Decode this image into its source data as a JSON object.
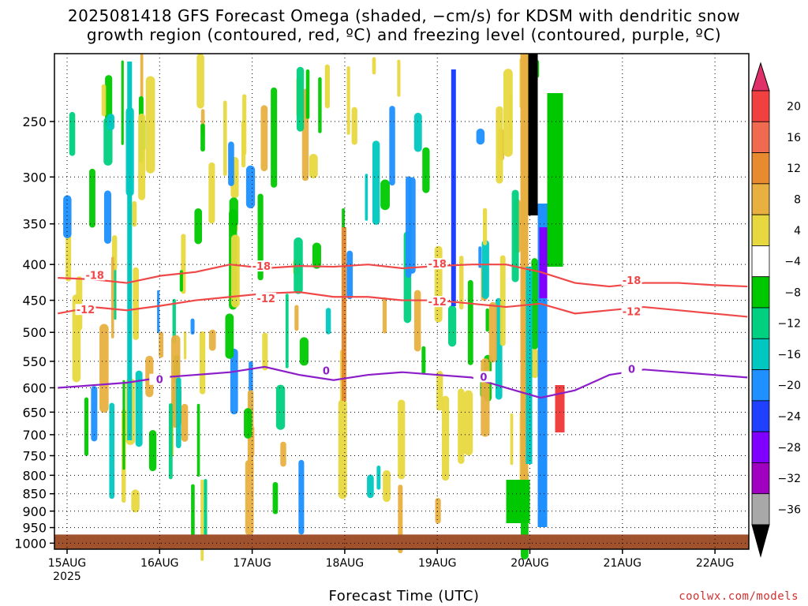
{
  "title_line1": "2025081418 GFS Forecast Omega (shaded, −cm/s) for KDSM with dendritic snow",
  "title_line2": "growth region (contoured, red, ºC) and freezing level (contoured, purple, ºC)",
  "credit": "coolwx.com/models",
  "chart_data": {
    "type": "heatmap",
    "xlabel": "Forecast Time (UTC)",
    "ylabel": "",
    "x_ticks": [
      "15AUG",
      "16AUG",
      "17AUG",
      "18AUG",
      "19AUG",
      "20AUG",
      "21AUG",
      "22AUG"
    ],
    "x_sub_label": "2025",
    "x_range_days": [
      -0.1,
      7.35
    ],
    "y_scale": "log pressure (hPa), inverted",
    "y_ticks": [
      250,
      300,
      350,
      400,
      450,
      500,
      550,
      600,
      650,
      700,
      750,
      800,
      850,
      900,
      950,
      1000
    ],
    "y_range": [
      200,
      1020
    ],
    "grid": true,
    "ground_level_hPa": 972,
    "colorbar": {
      "labels": [
        "20",
        "16",
        "12",
        "8",
        "4",
        "−4",
        "−8",
        "−12",
        "−16",
        "−20",
        "−24",
        "−28",
        "−32",
        "−36"
      ],
      "colors": [
        "#e0306a",
        "#f04040",
        "#f06a50",
        "#e88a30",
        "#e8b040",
        "#e8d840",
        "#ffffff",
        "#00c800",
        "#00d080",
        "#00c8c0",
        "#1e90ff",
        "#2040ff",
        "#8000ff",
        "#a000c0",
        "#a8a8a8",
        "#000000"
      ]
    },
    "contours": [
      {
        "name": "-18",
        "color": "#f04848",
        "levels_hPa": [
          418,
          420,
          425,
          415,
          410,
          400,
          405,
          402,
          403,
          400,
          405,
          402,
          400,
          400,
          410,
          425,
          430,
          425,
          425,
          428,
          430
        ]
      },
      {
        "name": "-12",
        "color": "#f04848",
        "levels_hPa": [
          470,
          460,
          465,
          458,
          450,
          445,
          440,
          438,
          445,
          445,
          450,
          450,
          455,
          460,
          455,
          470,
          465,
          460,
          465,
          470,
          475
        ]
      },
      {
        "name": "0",
        "color": "#8b1ec8",
        "levels_hPa": [
          600,
          595,
          590,
          580,
          575,
          570,
          560,
          575,
          585,
          575,
          570,
          575,
          580,
          600,
          620,
          605,
          575,
          565,
          570,
          575,
          580
        ]
      }
    ],
    "contour_labels": [
      {
        "text": "-18",
        "day": 0.3,
        "p": 415
      },
      {
        "text": "-18",
        "day": 2.1,
        "p": 403
      },
      {
        "text": "-18",
        "day": 4.0,
        "p": 400
      },
      {
        "text": "-18",
        "day": 6.1,
        "p": 422
      },
      {
        "text": "-12",
        "day": 0.2,
        "p": 465
      },
      {
        "text": "-12",
        "day": 2.15,
        "p": 448
      },
      {
        "text": "-12",
        "day": 4.0,
        "p": 453
      },
      {
        "text": "-12",
        "day": 6.1,
        "p": 468
      },
      {
        "text": "0",
        "day": 1.0,
        "p": 585
      },
      {
        "text": "0",
        "day": 2.8,
        "p": 568
      },
      {
        "text": "0",
        "day": 4.5,
        "p": 580
      },
      {
        "text": "0",
        "day": 6.1,
        "p": 565
      }
    ]
  }
}
